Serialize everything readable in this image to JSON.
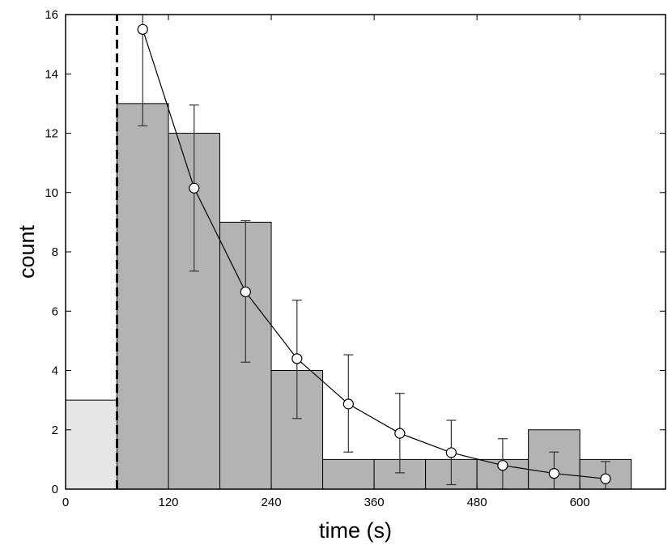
{
  "chart_data": {
    "type": "bar",
    "xlabel": "time (s)",
    "ylabel": "count",
    "xlim": [
      0,
      700
    ],
    "ylim": [
      0,
      16
    ],
    "x_ticks": [
      0,
      120,
      240,
      360,
      480,
      600
    ],
    "y_ticks": [
      0,
      2,
      4,
      6,
      8,
      10,
      12,
      14,
      16
    ],
    "grid": false,
    "bin_width": 60,
    "histogram": {
      "bin_starts": [
        0,
        60,
        120,
        180,
        240,
        300,
        360,
        420,
        480,
        540,
        600
      ],
      "values": [
        3,
        13,
        12,
        9,
        4,
        1,
        1,
        1,
        1,
        2,
        1
      ],
      "bar_colors": [
        "#e6e6e6",
        "#b3b3b3",
        "#b3b3b3",
        "#b3b3b3",
        "#b3b3b3",
        "#b3b3b3",
        "#b3b3b3",
        "#b3b3b3",
        "#b3b3b3",
        "#b3b3b3",
        "#b3b3b3"
      ]
    },
    "threshold_line": {
      "x": 60,
      "style": "dashed"
    },
    "fit_series": {
      "x": [
        90,
        150,
        210,
        270,
        330,
        390,
        450,
        510,
        570,
        630
      ],
      "values": [
        15.5,
        10.15,
        6.65,
        4.4,
        2.87,
        1.88,
        1.23,
        0.8,
        0.53,
        0.35
      ],
      "err_low": [
        12.25,
        7.35,
        4.28,
        2.38,
        1.25,
        0.55,
        0.15,
        0.0,
        0.0,
        0.0
      ],
      "err_high": [
        16.0,
        12.95,
        9.05,
        6.37,
        4.53,
        3.23,
        2.32,
        1.7,
        1.25,
        0.93
      ]
    }
  }
}
